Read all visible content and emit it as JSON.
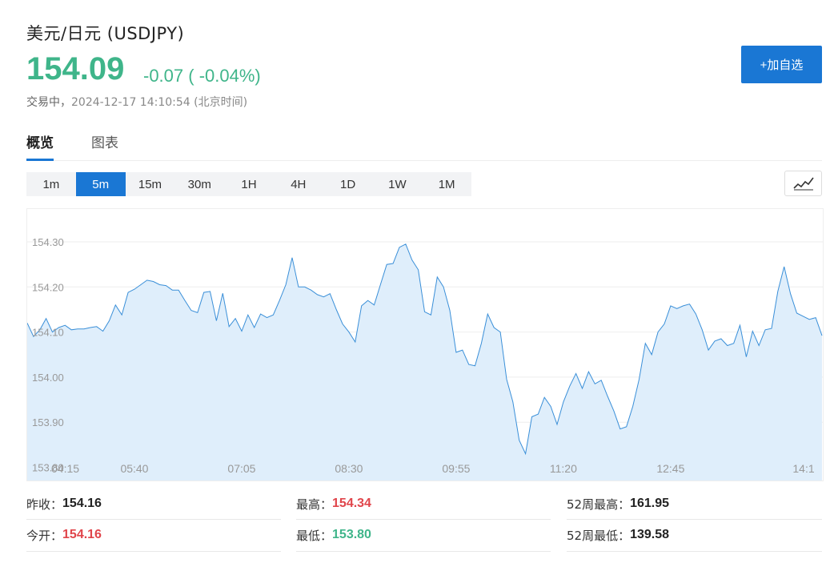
{
  "header": {
    "title": "美元/日元 (USDJPY)",
    "price": "154.09",
    "change": "-0.07 ( -0.04%)",
    "status_label": "交易中，",
    "timestamp": "2024-12-17 14:10:54 (北京时间)",
    "add_button": "+加自选"
  },
  "tabs": [
    {
      "label": "概览",
      "active": true
    },
    {
      "label": "图表",
      "active": false
    }
  ],
  "intervals": [
    "1m",
    "5m",
    "15m",
    "30m",
    "1H",
    "4H",
    "1D",
    "1W",
    "1M"
  ],
  "active_interval": "5m",
  "chart_type_icon": "line-chart-icon",
  "colors": {
    "accent": "#1a77d4",
    "down": "#3fb58a",
    "up": "#e0454b",
    "line": "#3a8fd8",
    "fill": "#dfeefb"
  },
  "chart_data": {
    "type": "area",
    "ylim": [
      153.8,
      154.35
    ],
    "y_ticks": [
      "154.30",
      "154.20",
      "154.10",
      "154.00",
      "153.90",
      "153.80"
    ],
    "x_ticks": [
      "04:15",
      "05:40",
      "07:05",
      "08:30",
      "09:55",
      "11:20",
      "12:45",
      "14:1"
    ],
    "x_tick_index": [
      0,
      17,
      34,
      51,
      68,
      85,
      102,
      119
    ],
    "series": [
      {
        "values": [
          154.12,
          154.09,
          154.105,
          154.13,
          154.1,
          154.11,
          154.115,
          154.105,
          154.107,
          154.107,
          154.11,
          154.112,
          154.102,
          154.125,
          154.16,
          154.138,
          154.188,
          154.195,
          154.205,
          154.215,
          154.212,
          154.205,
          154.203,
          154.193,
          154.193,
          154.17,
          154.148,
          154.143,
          154.188,
          154.19,
          154.125,
          154.186,
          154.112,
          154.13,
          154.102,
          154.138,
          154.11,
          154.14,
          154.132,
          154.138,
          154.17,
          154.205,
          154.265,
          154.2,
          154.2,
          154.193,
          154.183,
          154.178,
          154.185,
          154.15,
          154.118,
          154.1,
          154.078,
          154.158,
          154.17,
          154.16,
          154.205,
          154.25,
          154.252,
          154.288,
          154.295,
          154.26,
          154.238,
          154.145,
          154.138,
          154.222,
          154.2,
          154.148,
          154.055,
          154.06,
          154.028,
          154.025,
          154.075,
          154.14,
          154.11,
          154.1,
          153.995,
          153.945,
          153.86,
          153.83,
          153.912,
          153.918,
          153.955,
          153.935,
          153.895,
          153.945,
          153.98,
          154.008,
          153.975,
          154.012,
          153.985,
          153.993,
          153.958,
          153.925,
          153.885,
          153.89,
          153.935,
          153.995,
          154.075,
          154.05,
          154.1,
          154.118,
          154.158,
          154.152,
          154.158,
          154.162,
          154.14,
          154.105,
          154.06,
          154.08,
          154.085,
          154.07,
          154.075,
          154.115,
          154.045,
          154.102,
          154.07,
          154.105,
          154.108,
          154.19,
          154.245,
          154.185,
          154.142,
          154.135,
          154.128,
          154.132,
          154.092
        ]
      }
    ]
  },
  "stats": {
    "prev_close_label": "昨收：",
    "prev_close": "154.16",
    "open_label": "今开：",
    "open": "154.16",
    "high_label": "最高：",
    "high": "154.34",
    "low_label": "最低：",
    "low": "153.80",
    "w52_high_label": "52周最高：",
    "w52_high": "161.95",
    "w52_low_label": "52周最低：",
    "w52_low": "139.58"
  }
}
